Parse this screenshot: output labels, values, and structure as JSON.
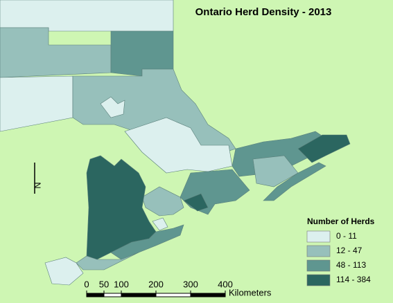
{
  "title": "Ontario Herd Density - 2013",
  "north_label": "N",
  "legend": {
    "title": "Number of Herds",
    "items": [
      {
        "label": "0 - 11",
        "color": "#dcf0ee"
      },
      {
        "label": "12 - 47",
        "color": "#97c0bb"
      },
      {
        "label": "48 - 113",
        "color": "#5f9690"
      },
      {
        "label": "114 - 384",
        "color": "#2b6660"
      }
    ]
  },
  "scale_bar": {
    "ticks": [
      0,
      50,
      100,
      200,
      300,
      400
    ],
    "unit": "Kilometers"
  }
}
